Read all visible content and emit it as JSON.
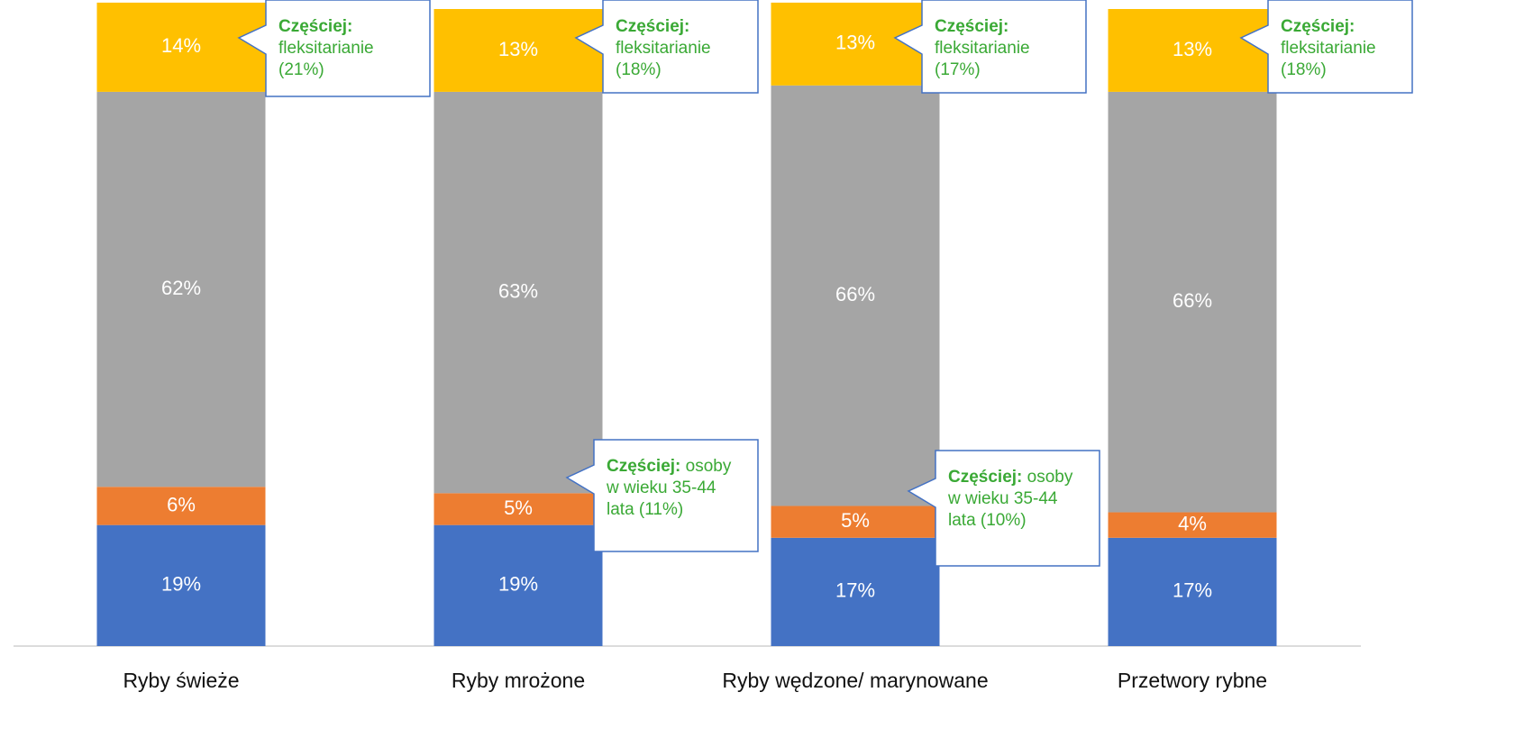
{
  "chart_data": {
    "type": "stacked-bar",
    "categories": [
      "Ryby świeże",
      "Ryby mrożone",
      "Ryby wędzone/ marynowane",
      "Przetwory rybne"
    ],
    "ylim": [
      0,
      100
    ],
    "series": [
      {
        "color": "#4472c4",
        "values": [
          19,
          19,
          17,
          17
        ],
        "value_labels": [
          "19%",
          "19%",
          "17%",
          "17%"
        ]
      },
      {
        "color": "#ed7d31",
        "values": [
          6,
          5,
          5,
          4
        ],
        "value_labels": [
          "6%",
          "5%",
          "5%",
          "4%"
        ]
      },
      {
        "color": "#a5a5a5",
        "values": [
          62,
          63,
          66,
          66
        ],
        "value_labels": [
          "62%",
          "63%",
          "66%",
          "66%"
        ]
      },
      {
        "color": "#ffc000",
        "values": [
          14,
          13,
          13,
          13
        ],
        "value_labels": [
          "14%",
          "13%",
          "13%",
          "13%"
        ]
      }
    ],
    "annotations": [
      {
        "bold": "Częściej:",
        "text": "fleksitarianie (21%)"
      },
      {
        "bold": "Częściej:",
        "text": "fleksitarianie (18%)"
      },
      {
        "bold": "Częściej:",
        "text": "fleksitarianie (17%)"
      },
      {
        "bold": "Częściej:",
        "text": "fleksitarianie (18%)"
      },
      {
        "bold": "Częściej:",
        "text": "osoby w wieku 35-44 lata (11%)"
      },
      {
        "bold": "Częściej:",
        "text": "osoby w wieku 35-44 lata (10%)"
      }
    ]
  }
}
